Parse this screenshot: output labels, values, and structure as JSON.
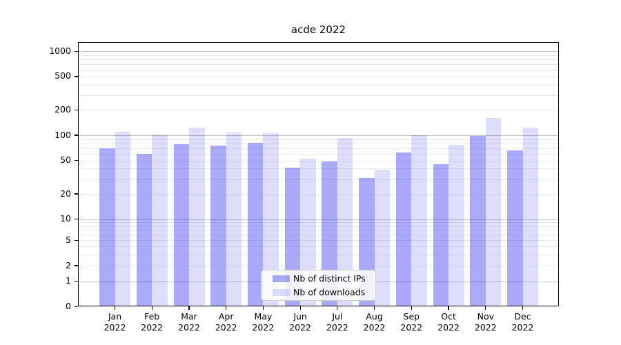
{
  "chart_data": {
    "type": "bar",
    "title": "acde 2022",
    "xlabel": "",
    "ylabel": "",
    "yscale": "symlog",
    "ylim": [
      0,
      1250
    ],
    "grid": "horizontal log major and minor gridlines",
    "legend_position": "lower center",
    "yticks": [
      1000,
      500,
      200,
      100,
      50,
      20,
      10,
      5,
      2,
      1,
      0
    ],
    "categories": [
      "Jan",
      "Feb",
      "Mar",
      "Apr",
      "May",
      "Jun",
      "Jul",
      "Aug",
      "Sep",
      "Oct",
      "Nov",
      "Dec"
    ],
    "x_year_label": "2022",
    "series": [
      {
        "name": "Nb of distinct IPs",
        "color": "rgba(20,20,235,0.36)",
        "color_on_white": "#a8a8f8",
        "values": [
          70,
          60,
          78,
          75,
          81,
          41,
          49,
          31,
          62,
          45,
          98,
          66
        ]
      },
      {
        "name": "Nb of downloads",
        "color": "rgba(20,20,235,0.14)",
        "color_on_white": "#dedefc",
        "values": [
          109,
          102,
          124,
          108,
          105,
          53,
          92,
          39,
          100,
          77,
          160,
          123
        ]
      }
    ]
  }
}
